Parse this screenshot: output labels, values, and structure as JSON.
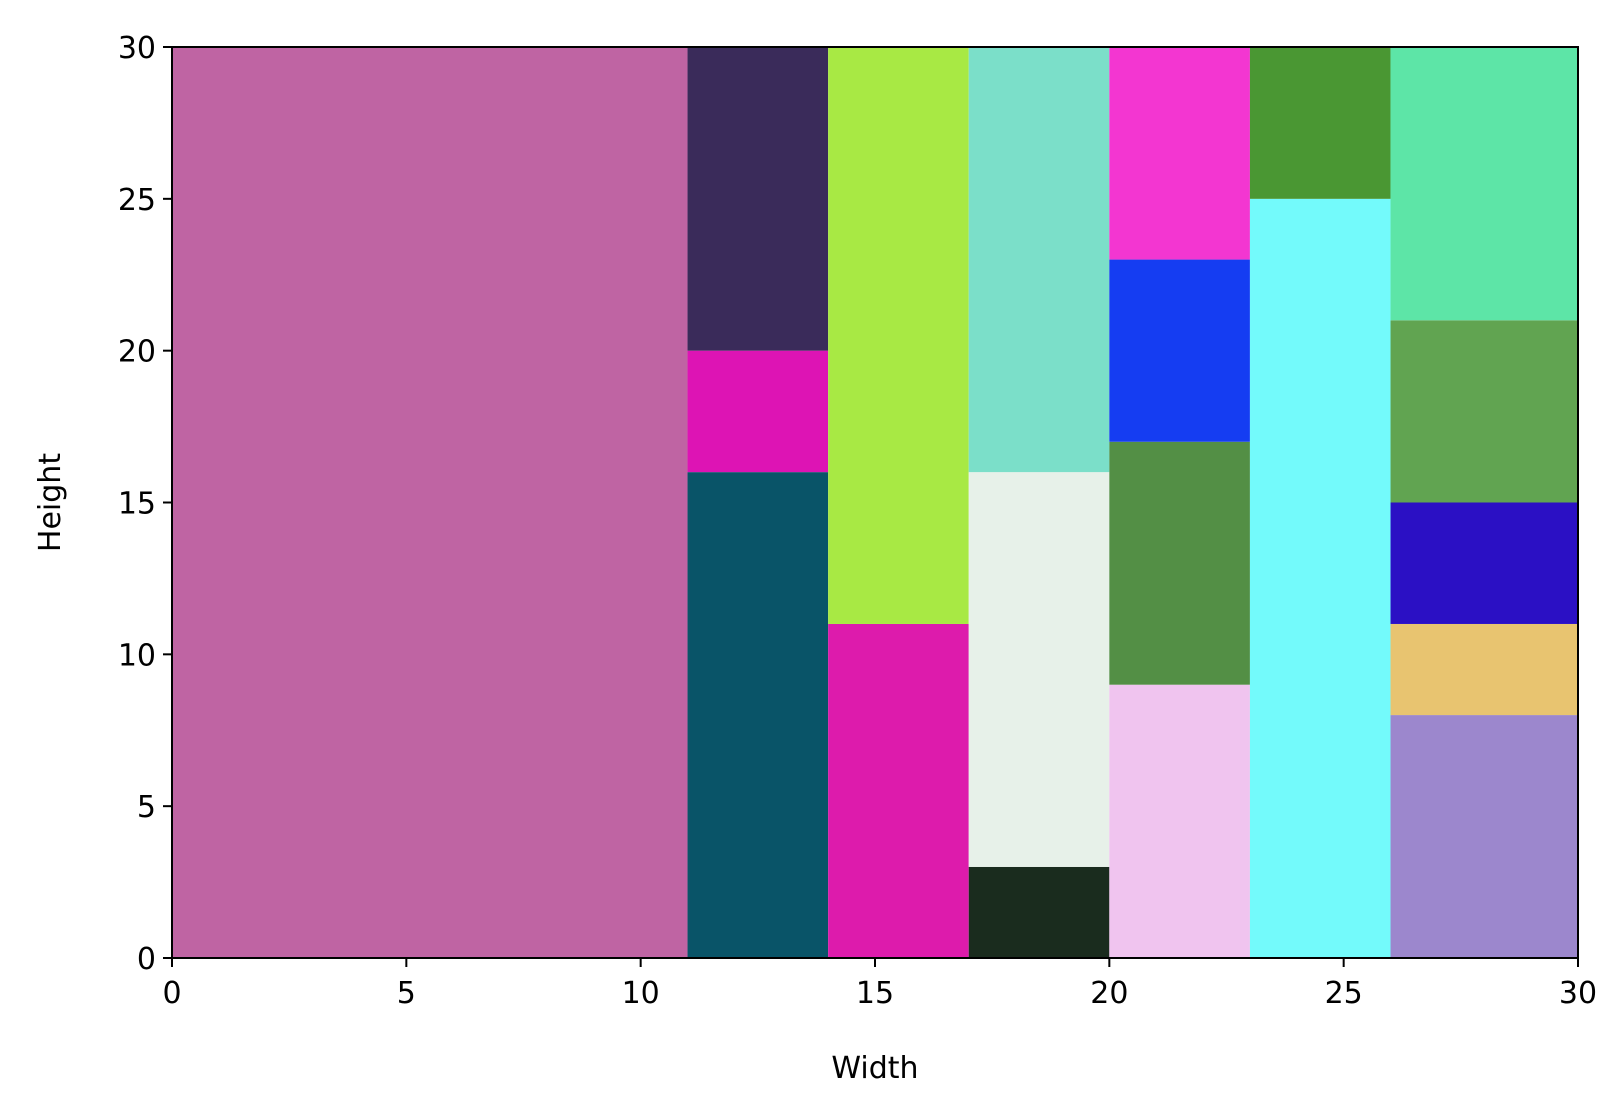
{
  "chart_data": {
    "type": "treemap",
    "title": "",
    "xlabel": "Width",
    "ylabel": "Height",
    "xlim": [
      0,
      30
    ],
    "ylim": [
      0,
      30
    ],
    "xticks": [
      0,
      5,
      10,
      15,
      20,
      25,
      30
    ],
    "yticks": [
      0,
      5,
      10,
      15,
      20,
      25,
      30
    ],
    "grid": false,
    "rects": [
      {
        "x": 0,
        "y": 0,
        "w": 11,
        "h": 30,
        "color": "#bf64a3"
      },
      {
        "x": 11,
        "y": 0,
        "w": 3,
        "h": 16,
        "color": "#095468"
      },
      {
        "x": 11,
        "y": 16,
        "w": 3,
        "h": 4,
        "color": "#dd14b4"
      },
      {
        "x": 11,
        "y": 20,
        "w": 3,
        "h": 10,
        "color": "#3a2b5a"
      },
      {
        "x": 14,
        "y": 0,
        "w": 3,
        "h": 11,
        "color": "#dd1bac"
      },
      {
        "x": 14,
        "y": 11,
        "w": 3,
        "h": 19,
        "color": "#a8e944"
      },
      {
        "x": 17,
        "y": 0,
        "w": 3,
        "h": 3,
        "color": "#1a2c1e"
      },
      {
        "x": 17,
        "y": 3,
        "w": 3,
        "h": 13,
        "color": "#e7f1e9"
      },
      {
        "x": 17,
        "y": 16,
        "w": 3,
        "h": 14,
        "color": "#7bdfc9"
      },
      {
        "x": 20,
        "y": 0,
        "w": 3,
        "h": 9,
        "color": "#f0c4ef"
      },
      {
        "x": 20,
        "y": 9,
        "w": 3,
        "h": 8,
        "color": "#538f45"
      },
      {
        "x": 20,
        "y": 17,
        "w": 3,
        "h": 6,
        "color": "#153df2"
      },
      {
        "x": 20,
        "y": 23,
        "w": 3,
        "h": 7,
        "color": "#f336d1"
      },
      {
        "x": 23,
        "y": 0,
        "w": 3,
        "h": 25,
        "color": "#73fafb"
      },
      {
        "x": 23,
        "y": 25,
        "w": 3,
        "h": 5,
        "color": "#4a9733"
      },
      {
        "x": 26,
        "y": 0,
        "w": 4,
        "h": 8,
        "color": "#9c87cd"
      },
      {
        "x": 26,
        "y": 8,
        "w": 4,
        "h": 3,
        "color": "#e8c470"
      },
      {
        "x": 26,
        "y": 11,
        "w": 4,
        "h": 4,
        "color": "#2b10c4"
      },
      {
        "x": 26,
        "y": 15,
        "w": 4,
        "h": 6,
        "color": "#61a451"
      },
      {
        "x": 26,
        "y": 21,
        "w": 4,
        "h": 9,
        "color": "#5de5a7"
      }
    ]
  }
}
